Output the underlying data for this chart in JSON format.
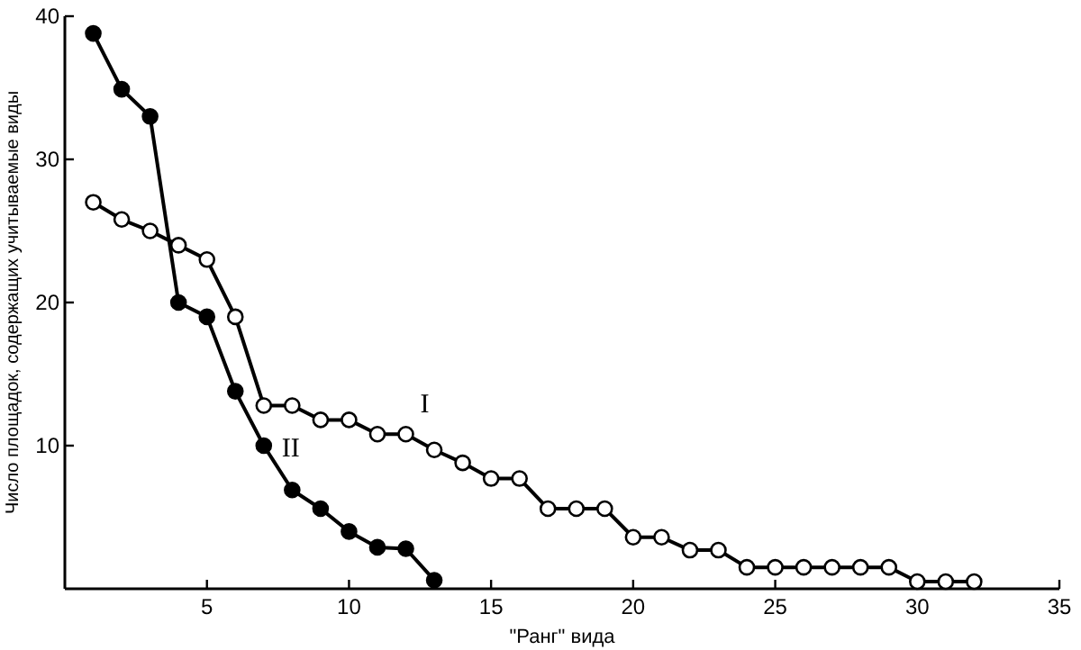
{
  "chart_data": {
    "type": "line",
    "xlabel": "\"Ранг\" вида",
    "ylabel": "Число площадок, содержащих учитываемые виды",
    "xlim": [
      0,
      35
    ],
    "xticks": [
      5,
      10,
      15,
      20,
      25,
      30,
      35
    ],
    "ylim": [
      0,
      40
    ],
    "yticks": [
      10,
      20,
      30,
      40
    ],
    "grid": false,
    "legend": false,
    "marker": "circle",
    "line_style": "solid",
    "series": [
      {
        "name": "I",
        "color": "#000000",
        "x": [
          1,
          2,
          3,
          4,
          5,
          6,
          7,
          8,
          9,
          10,
          11,
          12,
          13,
          14,
          15,
          16,
          17,
          18,
          19,
          20,
          21,
          22,
          23,
          24,
          25,
          26,
          27,
          28,
          29,
          30,
          31,
          32
        ],
        "values": [
          27,
          25.8,
          25,
          24,
          23,
          19,
          12.8,
          12.8,
          11.8,
          11.8,
          10.8,
          10.8,
          9.7,
          8.8,
          7.7,
          7.7,
          5.6,
          5.6,
          5.6,
          3.6,
          3.6,
          2.7,
          2.7,
          1.5,
          1.5,
          1.5,
          1.5,
          1.5,
          1.5,
          0.5,
          0.5,
          0.5
        ]
      },
      {
        "name": "II",
        "color": "#000000",
        "x": [
          1,
          2,
          3,
          4,
          5,
          6,
          7,
          8,
          9,
          10,
          11,
          12,
          13
        ],
        "values": [
          38.8,
          34.9,
          33,
          20,
          19,
          13.8,
          10,
          6.9,
          5.6,
          4,
          2.9,
          2.8,
          0.6
        ]
      }
    ]
  }
}
